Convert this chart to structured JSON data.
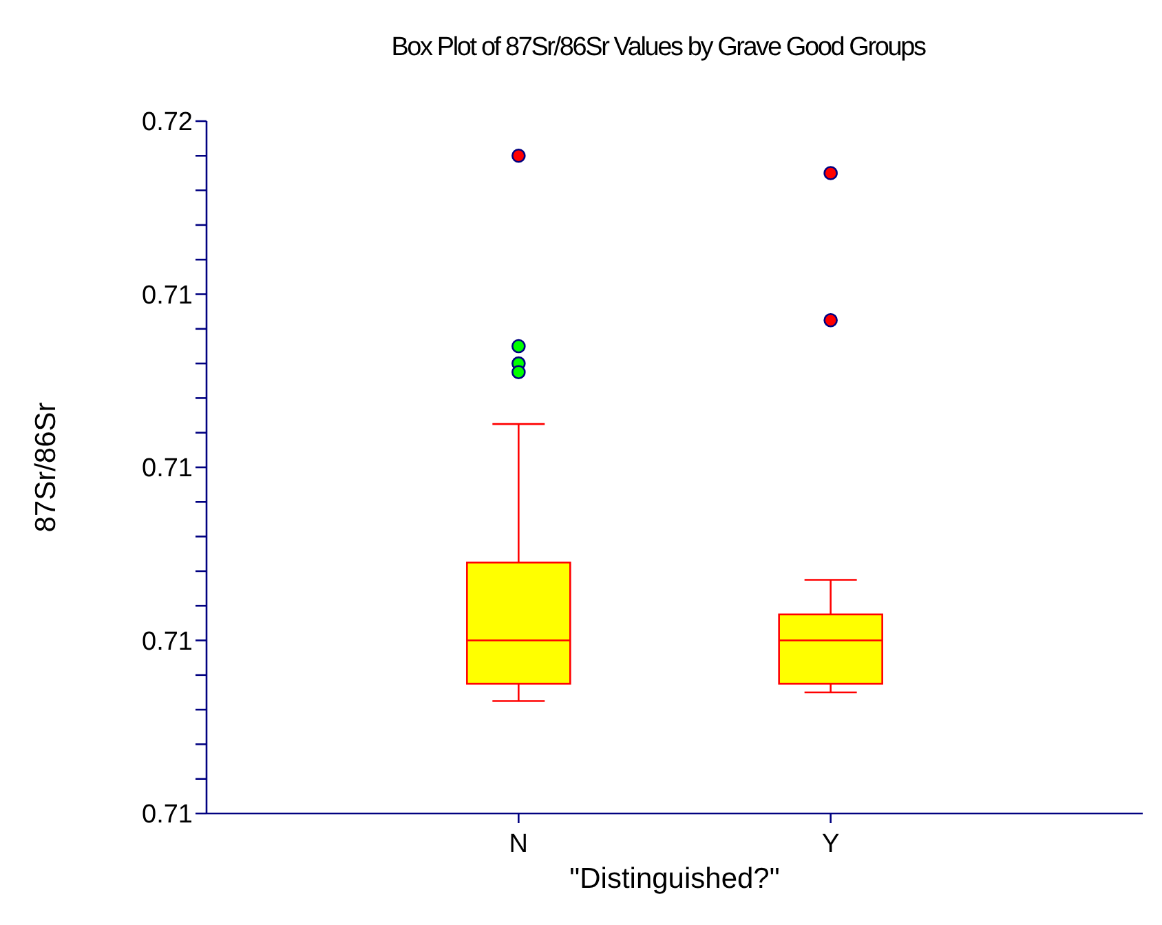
{
  "chart_data": {
    "type": "box",
    "title": "Box Plot of 87Sr/86Sr Values by Grave Good Groups",
    "xlabel": "\"Distinguished?\"",
    "ylabel": "87Sr/86Sr",
    "categories": [
      "N",
      "Y"
    ],
    "boxes": [
      {
        "low": 0.7093,
        "q1": 0.7095,
        "median": 0.71,
        "q3": 0.7109,
        "high": 0.7125
      },
      {
        "low": 0.7094,
        "q1": 0.7095,
        "median": 0.71,
        "q3": 0.7103,
        "high": 0.7107
      }
    ],
    "color": "#ffff00",
    "series": [
      {
        "type": "scatter",
        "color": "#ff0000",
        "x": [
          "N",
          "Y",
          "Y"
        ],
        "values": [
          0.7156,
          0.7154,
          0.7137
        ]
      },
      {
        "type": "scatter",
        "color": "#00ff00",
        "x": [
          "N",
          "N",
          "N"
        ],
        "values": [
          0.7134,
          0.7132,
          0.7131
        ]
      }
    ],
    "ylim": [
      0.708,
      0.716
    ],
    "yticks": [
      {
        "value": 0.708,
        "label": "0.71"
      },
      {
        "value": 0.71,
        "label": "0.71"
      },
      {
        "value": 0.712,
        "label": "0.71"
      },
      {
        "value": 0.714,
        "label": "0.71"
      },
      {
        "value": 0.716,
        "label": "0.72"
      }
    ],
    "grid": false,
    "marker": "circle"
  }
}
